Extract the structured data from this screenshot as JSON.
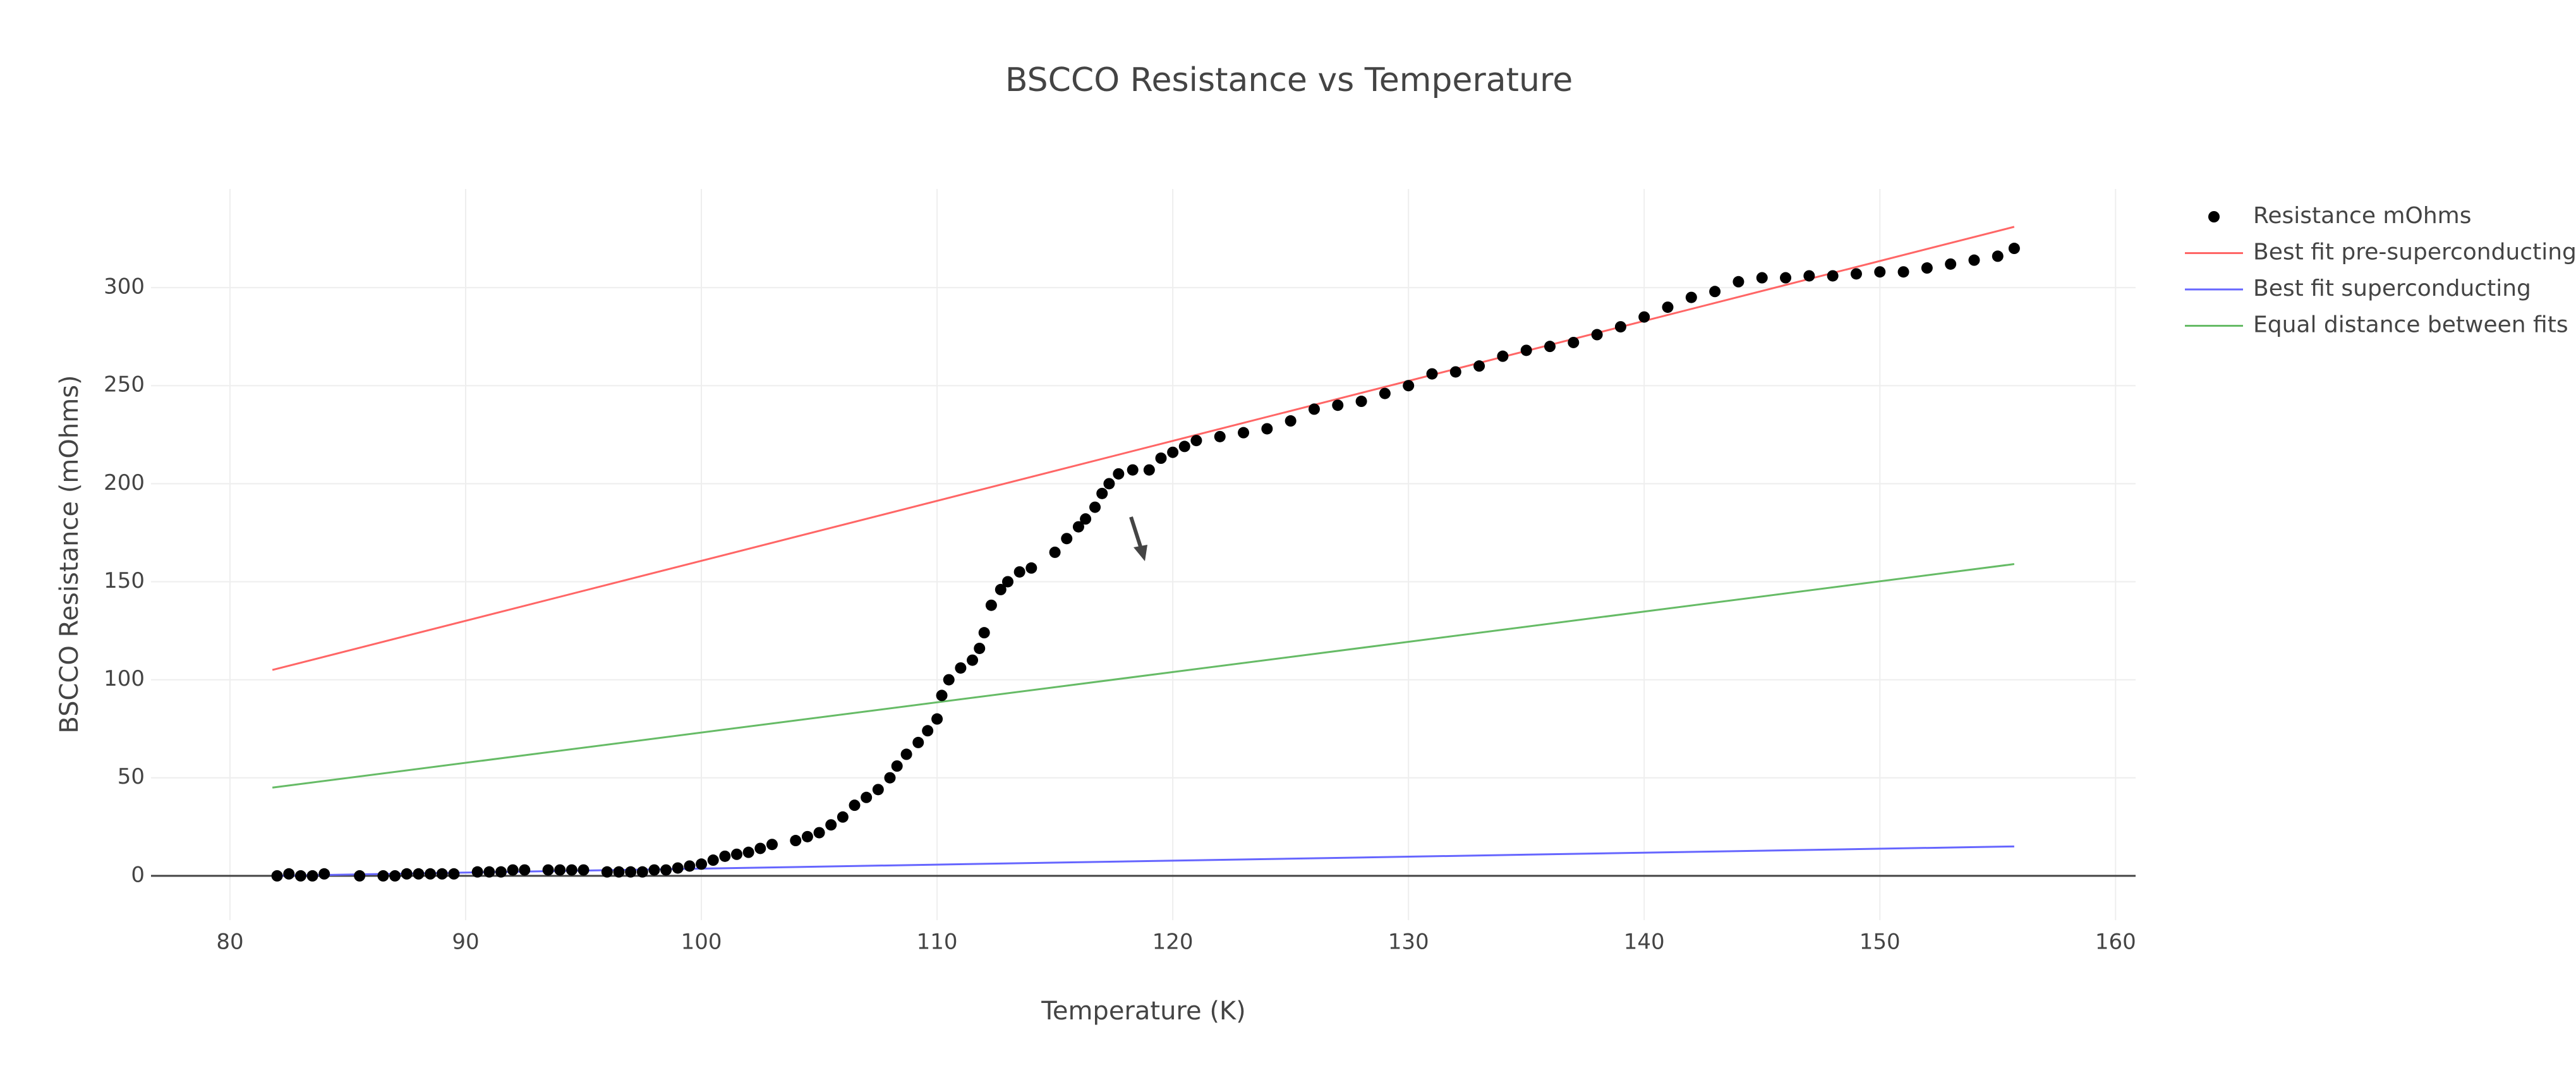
{
  "chart_data": {
    "type": "scatter",
    "title": "BSCCO Resistance vs Temperature",
    "x_label": "Temperature (K)",
    "y_label": "BSCCO Resistance (mOhms)",
    "xlim": [
      76.65,
      160.85
    ],
    "ylim": [
      -22.6,
      350.3
    ],
    "xticks": [
      80,
      90,
      100,
      110,
      120,
      130,
      140,
      150,
      160
    ],
    "yticks": [
      0,
      50,
      100,
      150,
      200,
      250,
      300
    ],
    "grid": true,
    "legend": "top-right",
    "series": [
      {
        "name": "Resistance mOhms",
        "mode": "markers",
        "color": "#000000",
        "x": [
          82,
          82.5,
          83,
          83.5,
          84,
          85.5,
          86.5,
          87,
          87.5,
          88,
          88.5,
          89,
          89.5,
          90.5,
          91,
          91.5,
          92,
          92.5,
          93.5,
          94,
          94.5,
          95,
          96,
          96.5,
          97,
          97.5,
          98,
          98.5,
          99,
          99.5,
          100,
          100.5,
          101,
          101.5,
          102,
          102.5,
          103,
          104,
          104.5,
          105,
          105.5,
          106,
          106.5,
          107,
          107.5,
          108,
          108.3,
          108.7,
          109.2,
          109.6,
          110,
          110.2,
          110.5,
          111,
          111.5,
          111.8,
          112,
          112.3,
          112.7,
          113,
          113.5,
          114,
          115,
          115.5,
          116,
          116.3,
          116.7,
          117,
          117.3,
          117.7,
          118.3,
          119,
          119.5,
          120,
          120.5,
          121,
          122,
          123,
          124,
          125,
          126,
          127,
          128,
          129,
          130,
          131,
          132,
          133,
          134,
          135,
          136,
          137,
          138,
          139,
          140,
          141,
          142,
          143,
          144,
          145,
          146,
          147,
          148,
          149,
          150,
          151,
          152,
          153,
          154,
          155,
          155.7
        ],
        "values": [
          0,
          1,
          0,
          0,
          1,
          0,
          0,
          0,
          1,
          1,
          1,
          1,
          1,
          2,
          2,
          2,
          3,
          3,
          3,
          3,
          3,
          3,
          2,
          2,
          2,
          2,
          3,
          3,
          4,
          5,
          6,
          8,
          10,
          11,
          12,
          14,
          16,
          18,
          20,
          22,
          26,
          30,
          36,
          40,
          44,
          50,
          56,
          62,
          68,
          74,
          80,
          92,
          100,
          106,
          110,
          116,
          124,
          138,
          146,
          150,
          155,
          157,
          165,
          172,
          178,
          182,
          188,
          195,
          200,
          205,
          207,
          207,
          213,
          216,
          219,
          222,
          224,
          226,
          228,
          232,
          238,
          240,
          242,
          246,
          250,
          256,
          257,
          260,
          265,
          268,
          270,
          272,
          276,
          280,
          285,
          290,
          295,
          298,
          303,
          305,
          305,
          306,
          306,
          307,
          308,
          308,
          310,
          312,
          314,
          316,
          320
        ]
      },
      {
        "name": "Best fit pre-superconducting",
        "mode": "lines",
        "color": "#ff6666",
        "x": [
          81.8,
          155.7
        ],
        "values": [
          105,
          331
        ]
      },
      {
        "name": "Best fit superconducting",
        "mode": "lines",
        "color": "#6666ff",
        "x": [
          81.8,
          155.7
        ],
        "values": [
          0,
          15
        ]
      },
      {
        "name": "Equal distance between fits",
        "mode": "lines",
        "color": "#66bb66",
        "x": [
          81.8,
          155.7
        ],
        "values": [
          45,
          159
        ]
      }
    ]
  }
}
